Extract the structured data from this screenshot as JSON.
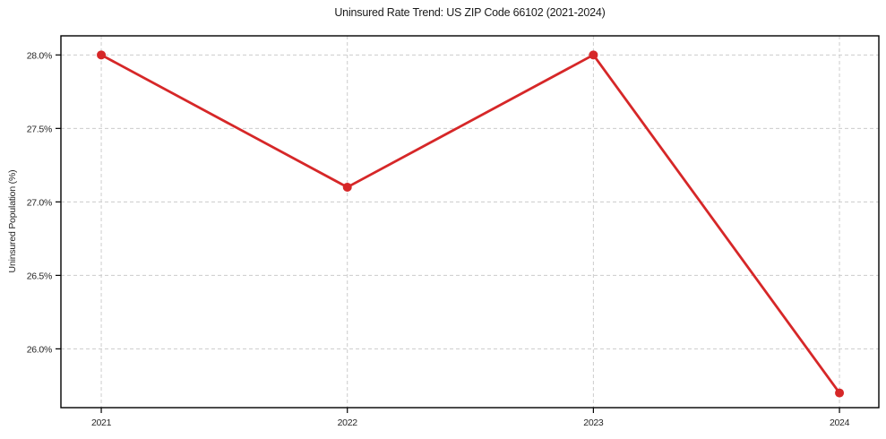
{
  "chart_data": {
    "type": "line",
    "title": "Uninsured Rate Trend: US ZIP Code 66102 (2021-2024)",
    "xlabel": "",
    "ylabel": "Uninsured Population (%)",
    "x": [
      2021,
      2022,
      2023,
      2024
    ],
    "values": [
      28.0,
      27.1,
      28.0,
      25.7
    ],
    "x_tick_labels": [
      "2021",
      "2022",
      "2023",
      "2024"
    ],
    "y_ticks": [
      26.0,
      26.5,
      27.0,
      27.5,
      28.0
    ],
    "y_tick_labels": [
      "26.0%",
      "26.5%",
      "27.0%",
      "27.5%",
      "28.0%"
    ],
    "xlim": [
      2020.836,
      2024.16
    ],
    "ylim": [
      25.6,
      28.13
    ],
    "grid": true,
    "grid_style": "dashed",
    "legend": "none",
    "colors": {
      "line": "#d62728",
      "marker": "#d62728",
      "grid": "#cccccc",
      "spine": "#000000",
      "text": "#262626",
      "background": "#ffffff"
    }
  }
}
